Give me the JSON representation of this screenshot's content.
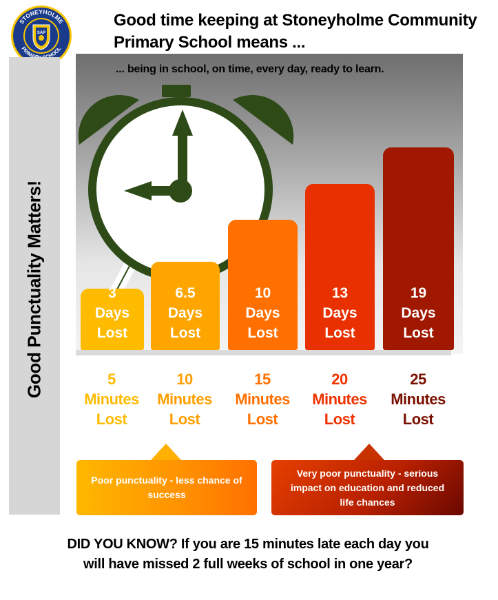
{
  "logo": {
    "top_text": "STONEYHOLME",
    "bottom_text": "PRIMARY SCHOOL",
    "crest_letters": "SAP",
    "colors": {
      "ring": "#1a3a8c",
      "gold": "#f5c400"
    }
  },
  "header": {
    "title_line1": "Good time keeping at Stoneyholme Community",
    "title_line2": "Primary School means ..."
  },
  "side": {
    "text": "Good Punctuality Matters!"
  },
  "chart": {
    "subtitle": "... being in school, on time, every day, ready to learn.",
    "clock_color": "#2d4a17"
  },
  "bars": [
    {
      "value": "3",
      "unit": "Days",
      "suffix": "Lost",
      "color": "#ffbb00"
    },
    {
      "value": "6.5",
      "unit": "Days",
      "suffix": "Lost",
      "color": "#ffa500"
    },
    {
      "value": "10",
      "unit": "Days",
      "suffix": "Lost",
      "color": "#ff7000"
    },
    {
      "value": "13",
      "unit": "Days",
      "suffix": "Lost",
      "color": "#e83000"
    },
    {
      "value": "19",
      "unit": "Days",
      "suffix": "Lost",
      "color": "#a01800"
    }
  ],
  "minutes": [
    {
      "value": "5",
      "unit": "Minutes",
      "suffix": "Lost",
      "color": "#ffbb00"
    },
    {
      "value": "10",
      "unit": "Minutes",
      "suffix": "Lost",
      "color": "#ffa000"
    },
    {
      "value": "15",
      "unit": "Minutes",
      "suffix": "Lost",
      "color": "#ff7000"
    },
    {
      "value": "20",
      "unit": "Minutes",
      "suffix": "Lost",
      "color": "#ee3300"
    },
    {
      "value": "25",
      "unit": "Minutes",
      "suffix": "Lost",
      "color": "#7a1000"
    }
  ],
  "callouts": {
    "poor": "Poor punctuality - less chance of success",
    "very_poor": "Very poor punctuality - serious impact on education and reduced life chances"
  },
  "footer": {
    "line1": "DID YOU KNOW? If you are 15 minutes late each day you",
    "line2": "will have missed 2 full weeks of school in one year?"
  }
}
